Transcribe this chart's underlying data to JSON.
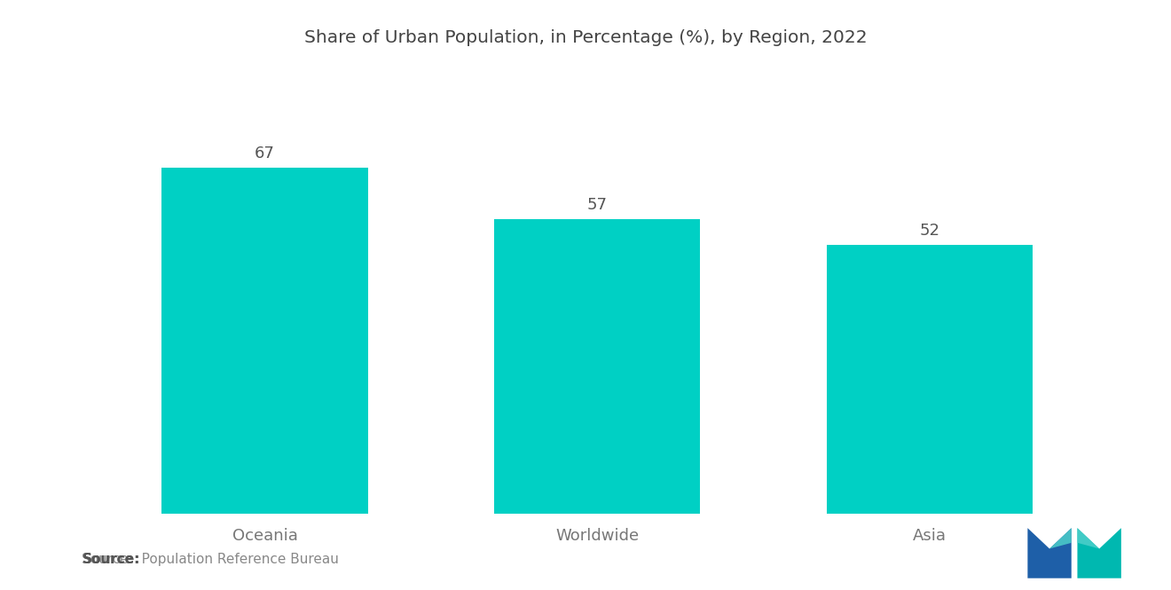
{
  "title": "Share of Urban Population, in Percentage (%), by Region, 2022",
  "categories": [
    "Oceania",
    "Worldwide",
    "Asia"
  ],
  "values": [
    67,
    57,
    52
  ],
  "bar_color": "#00D0C4",
  "background_color": "#ffffff",
  "title_fontsize": 14.5,
  "label_fontsize": 13,
  "value_fontsize": 13,
  "source_bold": "Source:",
  "source_rest": "  Population Reference Bureau",
  "ylim": [
    0,
    80
  ],
  "bar_width": 0.62,
  "logo_colors": {
    "dark_blue": "#1e5fa8",
    "teal": "#00b8b0",
    "light_teal": "#4dcfca"
  }
}
